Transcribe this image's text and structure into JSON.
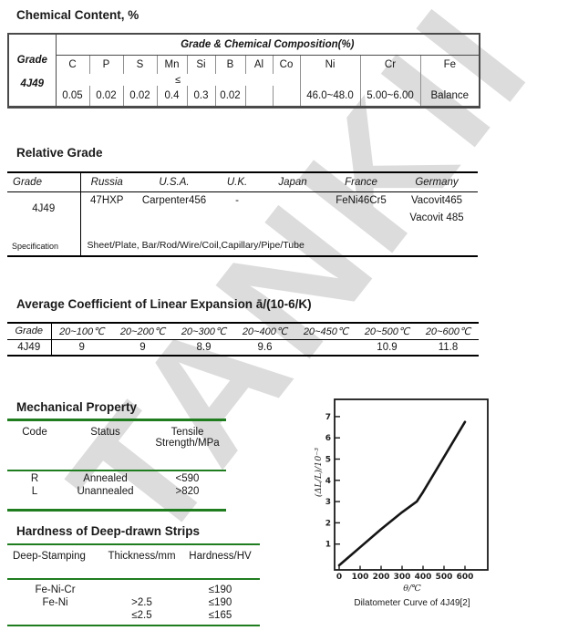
{
  "watermark": "TANKII",
  "colors": {
    "green_rule": "#1f7d1f",
    "watermark_gray": "#dcdcdc"
  },
  "sections": {
    "chemical": {
      "title": "Chemical Content, %",
      "grade_label": "Grade",
      "grade_value": "4J49",
      "composition_header": "Grade & Chemical Composition(%)",
      "limit_symbol": "≤",
      "elements": [
        "C",
        "P",
        "S",
        "Mn",
        "Si",
        "B",
        "Al",
        "Co",
        "Ni",
        "Cr",
        "Fe"
      ],
      "values": [
        "0.05",
        "0.02",
        "0.02",
        "0.4",
        "0.3",
        "0.02",
        "",
        "",
        "46.0~48.0",
        "5.00~6.00",
        "Balance"
      ]
    },
    "relative": {
      "title": "Relative Grade",
      "headers": [
        "Grade",
        "Russia",
        "U.S.A.",
        "U.K.",
        "Japan",
        "France",
        "Germany"
      ],
      "grade": "4J49",
      "row1": [
        "47HXP",
        "Carpenter456",
        "-",
        "",
        "FeNi46Cr5",
        "Vacovit465"
      ],
      "row2_germany": "Vacovit 485",
      "spec_label": "Specification",
      "spec_value": "Sheet/Plate, Bar/Rod/Wire/Coil,Capillary/Pipe/Tube"
    },
    "expansion": {
      "title": "Average Coefficient of Linear Expansion ā/(10-6/K)",
      "headers": [
        "Grade",
        "20~100℃",
        "20~200℃",
        "20~300℃",
        "20~400℃",
        "20~450℃",
        "20~500℃",
        "20~600℃"
      ],
      "row": [
        "4J49",
        "9",
        "9",
        "8.9",
        "9.6",
        "",
        "10.9",
        "11.8"
      ]
    },
    "mechanical": {
      "title": "Mechanical Property",
      "headers": [
        "Code",
        "Status",
        "Tensile Strength/MPa"
      ],
      "rows": [
        [
          "R",
          "Annealed",
          "<590"
        ],
        [
          "L",
          "Unannealed",
          ">820"
        ]
      ]
    },
    "hardness": {
      "title": "Hardness of Deep-drawn Strips",
      "headers": [
        "Deep-Stamping",
        "Thickness/mm",
        "Hardness/HV"
      ],
      "rows": [
        [
          "Fe-Ni-Cr",
          "",
          "≤190"
        ],
        [
          "Fe-Ni",
          ">2.5",
          "≤190"
        ],
        [
          "",
          "≤2.5",
          "≤165"
        ]
      ]
    }
  },
  "chart_data": {
    "type": "line",
    "title": "Dilatometer Curve of 4J49[2]",
    "xlabel": "θ/℃",
    "ylabel": "(ΔL/L)/10⁻³",
    "x_ticks": [
      0,
      100,
      200,
      300,
      400,
      500,
      600
    ],
    "y_ticks": [
      1,
      2,
      3,
      4,
      5,
      6,
      7
    ],
    "xlim": [
      0,
      730
    ],
    "ylim": [
      0,
      7.8
    ],
    "grid": false,
    "legend": "none",
    "points": [
      [
        0,
        0
      ],
      [
        100,
        0.85
      ],
      [
        200,
        1.7
      ],
      [
        300,
        2.5
      ],
      [
        370,
        3.0
      ],
      [
        400,
        3.45
      ],
      [
        500,
        5.1
      ],
      [
        600,
        6.75
      ]
    ]
  }
}
